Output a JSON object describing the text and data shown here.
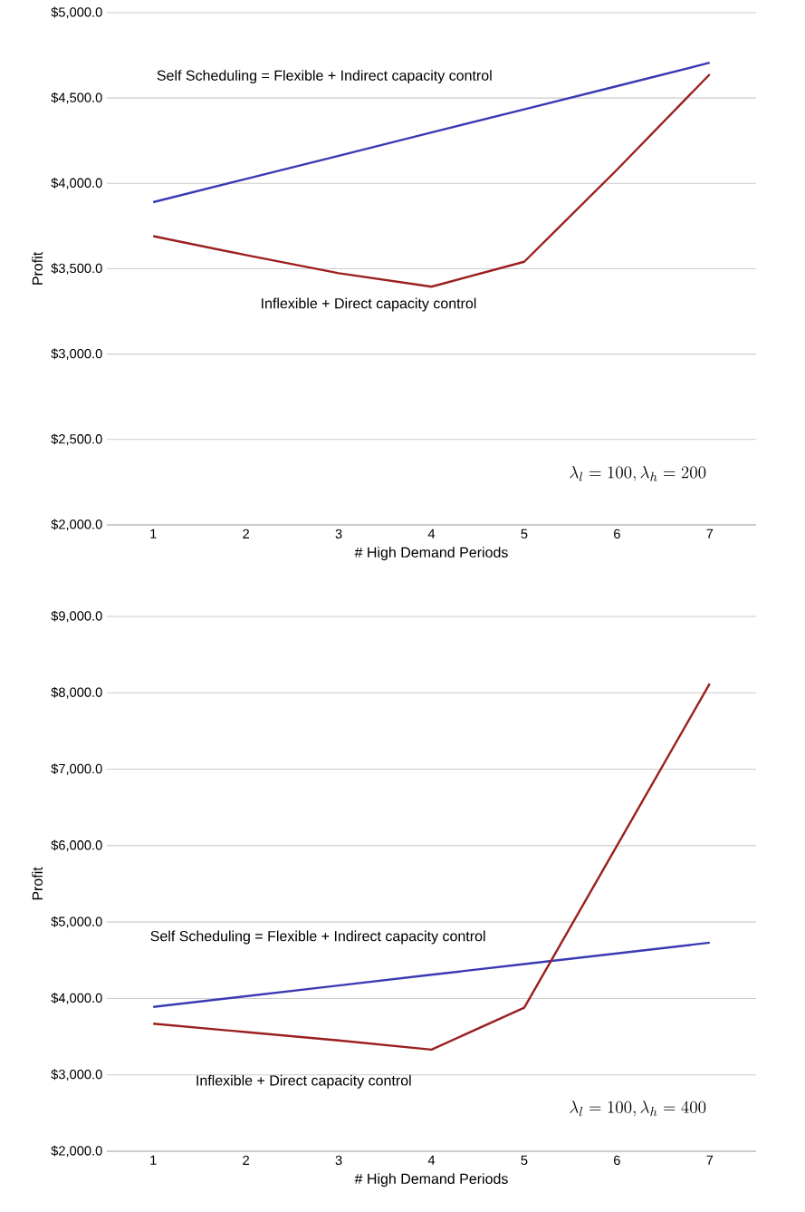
{
  "chart_data": [
    {
      "type": "line",
      "xlabel": "# High Demand Periods",
      "ylabel": "Profit",
      "categories": [
        "1",
        "2",
        "3",
        "4",
        "5",
        "6",
        "7"
      ],
      "series": [
        {
          "name": "Self Scheduling = Flexible + Indirect capacity control",
          "color": "#3a3ab4",
          "values": [
            3890,
            4026,
            4162,
            4298,
            4434,
            4570,
            4707
          ]
        },
        {
          "name": "Inflexible + Direct capacity control",
          "color": "#9b1f1f",
          "values": [
            3691,
            3580,
            3474,
            3395,
            3541,
            4080,
            4639
          ]
        }
      ],
      "ylim": [
        2000,
        5000
      ],
      "yticks": [
        {
          "value": 2000,
          "label": "$2,000.0"
        },
        {
          "value": 2500,
          "label": "$2,500.0"
        },
        {
          "value": 3000,
          "label": "$3,000.0"
        },
        {
          "value": 3500,
          "label": "$3,500.0"
        },
        {
          "value": 4000,
          "label": "$4,000.0"
        },
        {
          "value": 4500,
          "label": "$4,500.0"
        },
        {
          "value": 5000,
          "label": "$5,000.0"
        }
      ],
      "grid": "y",
      "legend": false,
      "line_style": "solid",
      "annotations": [
        "\\lambda_l = 100, \\lambda_h = 200"
      ]
    },
    {
      "type": "line",
      "xlabel": "# High Demand Periods",
      "ylabel": "Profit",
      "categories": [
        "1",
        "2",
        "3",
        "4",
        "5",
        "6",
        "7"
      ],
      "series": [
        {
          "name": "Self Scheduling = Flexible + Indirect capacity control",
          "color": "#3a3ab4",
          "values": [
            3890,
            4030,
            4170,
            4310,
            4450,
            4590,
            4730
          ]
        },
        {
          "name": "Inflexible + Direct capacity control",
          "color": "#9b1f1f",
          "values": [
            3670,
            3560,
            3450,
            3330,
            3880,
            6000,
            8120
          ]
        }
      ],
      "ylim": [
        2000,
        9000
      ],
      "yticks": [
        {
          "value": 2000,
          "label": "$2,000.0"
        },
        {
          "value": 3000,
          "label": "$3,000.0"
        },
        {
          "value": 4000,
          "label": "$4,000.0"
        },
        {
          "value": 5000,
          "label": "$5,000.0"
        },
        {
          "value": 6000,
          "label": "$6,000.0"
        },
        {
          "value": 7000,
          "label": "$7,000.0"
        },
        {
          "value": 8000,
          "label": "$8,000.0"
        },
        {
          "value": 9000,
          "label": "$9,000.0"
        }
      ],
      "grid": "y",
      "legend": false,
      "line_style": "solid",
      "annotations": [
        "\\lambda_l = 100, \\lambda_h = 400"
      ]
    }
  ]
}
